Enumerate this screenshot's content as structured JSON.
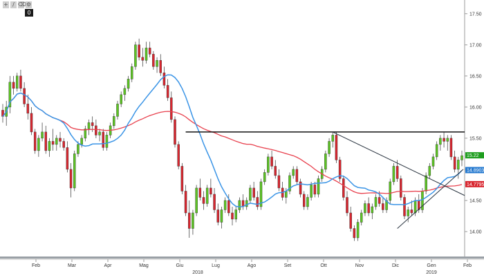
{
  "toolbar": {
    "tools": [
      {
        "name": "crosshair-icon",
        "glyph": "+"
      },
      {
        "name": "pencil-icon",
        "glyph": "/"
      },
      {
        "name": "trash-icon",
        "glyph": "⌫"
      },
      {
        "name": "settings-icon",
        "glyph": "⚙"
      }
    ],
    "badge": "0"
  },
  "chart_data": {
    "type": "candlestick",
    "x_axis": {
      "tick_labels": [
        "Feb",
        "Mar",
        "Apr",
        "Mag",
        "Giu",
        "Lug",
        "Ago",
        "Set",
        "Ott",
        "Nov",
        "Dic",
        "Gen",
        "Feb"
      ],
      "year_labels": [
        "2018",
        "2019"
      ]
    },
    "y_axis": {
      "tick_labels": [
        "14.00",
        "14.50",
        "15.00",
        "15.50",
        "16.00",
        "16.50",
        "17.00",
        "17.50"
      ],
      "ylim": [
        13.6,
        17.72
      ]
    },
    "price_tags": [
      {
        "value": "15.22",
        "color": "#1f9e1f"
      },
      {
        "value": "14.8903",
        "color": "#2479cf"
      },
      {
        "value": "14.7795",
        "color": "#d8262f"
      }
    ],
    "colors": {
      "up": "#5cc423",
      "down": "#d8262f",
      "ma_short": "#3a94e6",
      "ma_long": "#e8414e",
      "trendline": "#2a3440",
      "resistance": "#111111"
    },
    "candles": [
      [
        15.95,
        16.05,
        15.75,
        15.85
      ],
      [
        15.85,
        16.1,
        15.7,
        16.0
      ],
      [
        16.0,
        16.5,
        15.9,
        16.4
      ],
      [
        16.4,
        16.5,
        16.2,
        16.3
      ],
      [
        16.3,
        16.55,
        16.25,
        16.5
      ],
      [
        16.5,
        16.6,
        16.25,
        16.3
      ],
      [
        16.3,
        16.4,
        16.0,
        16.05
      ],
      [
        16.05,
        16.2,
        15.8,
        15.9
      ],
      [
        15.9,
        16.0,
        15.55,
        15.6
      ],
      [
        15.6,
        15.65,
        15.25,
        15.3
      ],
      [
        15.3,
        15.55,
        15.2,
        15.5
      ],
      [
        15.5,
        15.75,
        15.45,
        15.6
      ],
      [
        15.6,
        15.7,
        15.25,
        15.3
      ],
      [
        15.3,
        15.5,
        15.2,
        15.45
      ],
      [
        15.45,
        15.65,
        15.3,
        15.4
      ],
      [
        15.4,
        15.55,
        15.3,
        15.5
      ],
      [
        15.5,
        15.6,
        15.35,
        15.45
      ],
      [
        15.45,
        15.5,
        15.3,
        15.35
      ],
      [
        15.35,
        15.45,
        14.95,
        15.0
      ],
      [
        15.0,
        15.1,
        14.55,
        14.7
      ],
      [
        14.7,
        15.3,
        14.65,
        15.25
      ],
      [
        15.25,
        15.45,
        15.2,
        15.4
      ],
      [
        15.4,
        15.55,
        15.35,
        15.5
      ],
      [
        15.5,
        15.7,
        15.45,
        15.65
      ],
      [
        15.65,
        15.8,
        15.55,
        15.75
      ],
      [
        15.75,
        15.85,
        15.6,
        15.7
      ],
      [
        15.7,
        15.8,
        15.5,
        15.55
      ],
      [
        15.55,
        15.65,
        15.45,
        15.6
      ],
      [
        15.6,
        15.65,
        15.3,
        15.35
      ],
      [
        15.35,
        15.6,
        15.3,
        15.55
      ],
      [
        15.55,
        15.75,
        15.5,
        15.7
      ],
      [
        15.7,
        15.9,
        15.65,
        15.85
      ],
      [
        15.85,
        16.1,
        15.8,
        16.05
      ],
      [
        16.05,
        16.25,
        16.0,
        16.2
      ],
      [
        16.2,
        16.35,
        16.1,
        16.3
      ],
      [
        16.3,
        16.5,
        16.25,
        16.45
      ],
      [
        16.45,
        16.7,
        16.4,
        16.65
      ],
      [
        16.65,
        17.05,
        16.6,
        17.0
      ],
      [
        17.0,
        17.1,
        16.75,
        16.8
      ],
      [
        16.8,
        16.95,
        16.65,
        16.75
      ],
      [
        16.75,
        17.05,
        16.7,
        16.95
      ],
      [
        16.95,
        17.05,
        16.8,
        16.85
      ],
      [
        16.85,
        16.9,
        16.6,
        16.65
      ],
      [
        16.65,
        16.8,
        16.55,
        16.75
      ],
      [
        16.75,
        16.85,
        16.5,
        16.55
      ],
      [
        16.55,
        16.65,
        16.3,
        16.35
      ],
      [
        16.35,
        16.45,
        16.1,
        16.15
      ],
      [
        16.15,
        16.25,
        15.75,
        15.8
      ],
      [
        15.8,
        15.85,
        15.35,
        15.4
      ],
      [
        15.4,
        15.45,
        15.0,
        15.05
      ],
      [
        15.05,
        15.1,
        14.6,
        14.65
      ],
      [
        14.65,
        14.75,
        14.25,
        14.3
      ],
      [
        14.3,
        14.5,
        13.9,
        14.05
      ],
      [
        14.05,
        14.35,
        13.95,
        14.3
      ],
      [
        14.3,
        14.75,
        14.25,
        14.7
      ],
      [
        14.7,
        14.85,
        14.5,
        14.55
      ],
      [
        14.55,
        14.65,
        14.35,
        14.45
      ],
      [
        14.45,
        14.75,
        14.4,
        14.7
      ],
      [
        14.7,
        14.85,
        14.55,
        14.6
      ],
      [
        14.6,
        14.7,
        14.3,
        14.35
      ],
      [
        14.35,
        14.45,
        14.1,
        14.15
      ],
      [
        14.15,
        14.4,
        14.05,
        14.35
      ],
      [
        14.35,
        14.55,
        14.3,
        14.5
      ],
      [
        14.5,
        14.6,
        14.25,
        14.3
      ],
      [
        14.3,
        14.4,
        14.1,
        14.2
      ],
      [
        14.2,
        14.4,
        14.15,
        14.35
      ],
      [
        14.35,
        14.55,
        14.3,
        14.5
      ],
      [
        14.5,
        14.6,
        14.35,
        14.4
      ],
      [
        14.4,
        14.55,
        14.35,
        14.5
      ],
      [
        14.5,
        14.75,
        14.45,
        14.7
      ],
      [
        14.7,
        14.8,
        14.5,
        14.55
      ],
      [
        14.55,
        14.65,
        14.35,
        14.4
      ],
      [
        14.4,
        14.85,
        14.35,
        14.8
      ],
      [
        14.8,
        15.0,
        14.75,
        14.95
      ],
      [
        14.95,
        15.25,
        14.9,
        15.2
      ],
      [
        15.2,
        15.3,
        15.0,
        15.05
      ],
      [
        15.05,
        15.15,
        14.85,
        14.9
      ],
      [
        14.9,
        15.0,
        14.65,
        14.7
      ],
      [
        14.7,
        14.8,
        14.5,
        14.55
      ],
      [
        14.55,
        14.7,
        14.45,
        14.65
      ],
      [
        14.65,
        14.95,
        14.6,
        14.9
      ],
      [
        14.9,
        15.05,
        14.85,
        15.0
      ],
      [
        15.0,
        15.05,
        14.75,
        14.8
      ],
      [
        14.8,
        14.85,
        14.55,
        14.6
      ],
      [
        14.6,
        14.65,
        14.35,
        14.4
      ],
      [
        14.4,
        14.6,
        14.35,
        14.55
      ],
      [
        14.55,
        14.8,
        14.5,
        14.75
      ],
      [
        14.75,
        14.8,
        14.55,
        14.6
      ],
      [
        14.6,
        14.9,
        14.55,
        14.85
      ],
      [
        14.85,
        15.05,
        14.8,
        15.0
      ],
      [
        15.0,
        15.3,
        14.95,
        15.25
      ],
      [
        15.25,
        15.5,
        15.2,
        15.45
      ],
      [
        15.45,
        15.6,
        15.35,
        15.55
      ],
      [
        15.55,
        15.6,
        15.1,
        15.15
      ],
      [
        15.15,
        15.2,
        14.8,
        14.85
      ],
      [
        14.85,
        14.9,
        14.5,
        14.55
      ],
      [
        14.55,
        14.65,
        14.25,
        14.3
      ],
      [
        14.3,
        14.4,
        14.0,
        14.05
      ],
      [
        14.05,
        14.1,
        13.85,
        13.9
      ],
      [
        13.9,
        14.2,
        13.85,
        14.15
      ],
      [
        14.15,
        14.35,
        14.1,
        14.3
      ],
      [
        14.3,
        14.5,
        14.25,
        14.45
      ],
      [
        14.45,
        14.55,
        14.25,
        14.3
      ],
      [
        14.3,
        14.45,
        14.2,
        14.4
      ],
      [
        14.4,
        14.6,
        14.35,
        14.55
      ],
      [
        14.55,
        14.65,
        14.4,
        14.45
      ],
      [
        14.45,
        14.55,
        14.3,
        14.35
      ],
      [
        14.35,
        14.55,
        14.3,
        14.5
      ],
      [
        14.5,
        14.85,
        14.45,
        14.8
      ],
      [
        14.8,
        15.1,
        14.75,
        15.05
      ],
      [
        15.05,
        15.15,
        14.8,
        14.85
      ],
      [
        14.85,
        14.9,
        14.5,
        14.55
      ],
      [
        14.55,
        14.6,
        14.2,
        14.25
      ],
      [
        14.25,
        14.4,
        14.15,
        14.35
      ],
      [
        14.35,
        14.5,
        14.25,
        14.3
      ],
      [
        14.3,
        14.55,
        14.25,
        14.5
      ],
      [
        14.5,
        14.6,
        14.3,
        14.35
      ],
      [
        14.35,
        14.7,
        14.3,
        14.65
      ],
      [
        14.65,
        14.95,
        14.6,
        14.9
      ],
      [
        14.9,
        15.1,
        14.85,
        15.05
      ],
      [
        15.05,
        15.25,
        15.0,
        15.2
      ],
      [
        15.2,
        15.45,
        15.15,
        15.4
      ],
      [
        15.4,
        15.55,
        15.3,
        15.5
      ],
      [
        15.5,
        15.6,
        15.35,
        15.45
      ],
      [
        15.45,
        15.55,
        15.3,
        15.5
      ],
      [
        15.5,
        15.55,
        15.15,
        15.2
      ],
      [
        15.2,
        15.3,
        14.95,
        15.0
      ],
      [
        15.0,
        15.2,
        14.85,
        15.15
      ],
      [
        15.15,
        15.3,
        15.05,
        15.22
      ]
    ]
  }
}
